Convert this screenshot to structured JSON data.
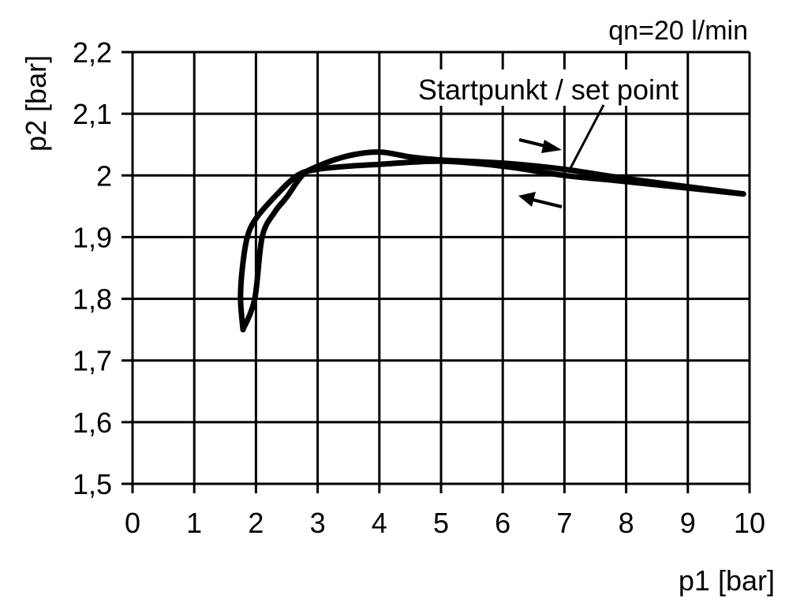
{
  "chart_data": {
    "type": "line",
    "title": "",
    "annotation_top_right": "qn=20 l/min",
    "annotation_set_point": "Startpunkt / set point",
    "xlabel": "p1 [bar]",
    "ylabel": "p2 [bar]",
    "xlim": [
      0,
      10
    ],
    "ylim": [
      1.5,
      2.2
    ],
    "xticks": [
      "0",
      "1",
      "2",
      "3",
      "4",
      "5",
      "6",
      "7",
      "8",
      "9",
      "10"
    ],
    "yticks": [
      "2,2",
      "2,1",
      "2",
      "1,9",
      "1,8",
      "1,7",
      "1,6",
      "1,5"
    ],
    "ytick_values": [
      2.2,
      2.1,
      2.0,
      1.9,
      1.8,
      1.7,
      1.6,
      1.5
    ],
    "grid": true,
    "line_color": "#000000",
    "series": [
      {
        "x": [
          1.79,
          1.75,
          1.78,
          1.86,
          2.0,
          2.3,
          2.67,
          3.0,
          3.5,
          4.0,
          5.0,
          6.0,
          7.0,
          8.0,
          9.9
        ],
        "y": [
          1.75,
          1.8,
          1.85,
          1.9,
          1.93,
          1.965,
          2.0,
          2.01,
          2.015,
          2.018,
          2.023,
          2.015,
          2.0,
          1.99,
          1.97
        ]
      },
      {
        "x": [
          1.79,
          1.98,
          2.1,
          2.3,
          2.5,
          2.75,
          3.0,
          3.5,
          4.0,
          4.5,
          5.0,
          6.0,
          7.0,
          8.0,
          9.9
        ],
        "y": [
          1.75,
          1.8,
          1.9,
          1.94,
          1.965,
          2.0,
          2.015,
          2.032,
          2.038,
          2.03,
          2.025,
          2.02,
          2.01,
          1.995,
          1.97
        ]
      }
    ],
    "direction_arrows": [
      "increasing",
      "decreasing"
    ]
  }
}
